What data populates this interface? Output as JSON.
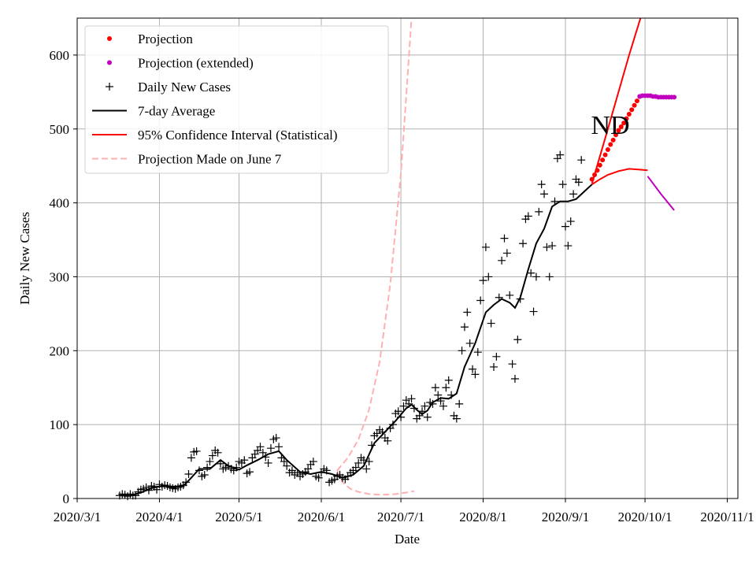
{
  "chart_data": {
    "type": "line",
    "state_label": "ND",
    "xlabel": "Date",
    "ylabel": "Daily New Cases",
    "xlim_days": [
      0,
      249
    ],
    "ylim": [
      0,
      650
    ],
    "x_ticks": [
      {
        "day": 0,
        "label": "2020/3/1"
      },
      {
        "day": 31,
        "label": "2020/4/1"
      },
      {
        "day": 61,
        "label": "2020/5/1"
      },
      {
        "day": 92,
        "label": "2020/6/1"
      },
      {
        "day": 122,
        "label": "2020/7/1"
      },
      {
        "day": 153,
        "label": "2020/8/1"
      },
      {
        "day": 184,
        "label": "2020/9/1"
      },
      {
        "day": 214,
        "label": "2020/10/1"
      },
      {
        "day": 245,
        "label": "2020/11/1"
      }
    ],
    "y_ticks": [
      0,
      100,
      200,
      300,
      400,
      500,
      600
    ],
    "grid": true,
    "legend": [
      {
        "label": "Projection",
        "style": "dot",
        "color": "#ff0000"
      },
      {
        "label": "Projection (extended)",
        "style": "dot",
        "color": "#bf00bf"
      },
      {
        "label": "Daily New Cases",
        "style": "plus",
        "color": "#000000"
      },
      {
        "label": "7-day Average",
        "style": "line",
        "color": "#000000"
      },
      {
        "label": "95% Confidence Interval (Statistical)",
        "style": "line",
        "color": "#ff0000"
      },
      {
        "label": "Projection Made on June 7",
        "style": "dash",
        "color": "#ffb0b0"
      }
    ],
    "daily_cases": [
      [
        16,
        4
      ],
      [
        17,
        6
      ],
      [
        18,
        5
      ],
      [
        19,
        3
      ],
      [
        20,
        6
      ],
      [
        21,
        4
      ],
      [
        22,
        4
      ],
      [
        23,
        9
      ],
      [
        24,
        12
      ],
      [
        25,
        13
      ],
      [
        26,
        15
      ],
      [
        27,
        11
      ],
      [
        28,
        17
      ],
      [
        29,
        16
      ],
      [
        30,
        12
      ],
      [
        31,
        19
      ],
      [
        32,
        16
      ],
      [
        33,
        18
      ],
      [
        34,
        17
      ],
      [
        35,
        15
      ],
      [
        36,
        14
      ],
      [
        37,
        13
      ],
      [
        38,
        15
      ],
      [
        39,
        16
      ],
      [
        40,
        18
      ],
      [
        41,
        22
      ],
      [
        42,
        33
      ],
      [
        43,
        55
      ],
      [
        44,
        63
      ],
      [
        45,
        64
      ],
      [
        46,
        38
      ],
      [
        47,
        30
      ],
      [
        48,
        32
      ],
      [
        49,
        42
      ],
      [
        50,
        50
      ],
      [
        51,
        58
      ],
      [
        52,
        65
      ],
      [
        53,
        62
      ],
      [
        54,
        47
      ],
      [
        55,
        40
      ],
      [
        56,
        42
      ],
      [
        57,
        44
      ],
      [
        58,
        40
      ],
      [
        59,
        38
      ],
      [
        60,
        42
      ],
      [
        61,
        50
      ],
      [
        62,
        48
      ],
      [
        63,
        52
      ],
      [
        64,
        34
      ],
      [
        65,
        36
      ],
      [
        66,
        55
      ],
      [
        67,
        60
      ],
      [
        68,
        65
      ],
      [
        69,
        70
      ],
      [
        70,
        62
      ],
      [
        71,
        56
      ],
      [
        72,
        48
      ],
      [
        73,
        68
      ],
      [
        74,
        80
      ],
      [
        75,
        82
      ],
      [
        76,
        70
      ],
      [
        77,
        55
      ],
      [
        78,
        50
      ],
      [
        79,
        44
      ],
      [
        80,
        35
      ],
      [
        81,
        38
      ],
      [
        82,
        32
      ],
      [
        83,
        35
      ],
      [
        84,
        30
      ],
      [
        85,
        33
      ],
      [
        86,
        36
      ],
      [
        87,
        40
      ],
      [
        88,
        46
      ],
      [
        89,
        50
      ],
      [
        90,
        30
      ],
      [
        91,
        28
      ],
      [
        92,
        35
      ],
      [
        93,
        40
      ],
      [
        94,
        38
      ],
      [
        95,
        22
      ],
      [
        96,
        24
      ],
      [
        97,
        26
      ],
      [
        98,
        30
      ],
      [
        99,
        32
      ],
      [
        100,
        28
      ],
      [
        101,
        26
      ],
      [
        102,
        30
      ],
      [
        103,
        35
      ],
      [
        104,
        38
      ],
      [
        105,
        42
      ],
      [
        106,
        48
      ],
      [
        107,
        55
      ],
      [
        108,
        52
      ],
      [
        109,
        40
      ],
      [
        110,
        50
      ],
      [
        111,
        72
      ],
      [
        112,
        85
      ],
      [
        113,
        88
      ],
      [
        114,
        93
      ],
      [
        115,
        90
      ],
      [
        116,
        82
      ],
      [
        117,
        78
      ],
      [
        118,
        95
      ],
      [
        119,
        100
      ],
      [
        120,
        115
      ],
      [
        121,
        118
      ],
      [
        122,
        110
      ],
      [
        123,
        125
      ],
      [
        124,
        133
      ],
      [
        125,
        128
      ],
      [
        126,
        135
      ],
      [
        127,
        122
      ],
      [
        128,
        108
      ],
      [
        129,
        112
      ],
      [
        130,
        118
      ],
      [
        131,
        125
      ],
      [
        132,
        110
      ],
      [
        133,
        130
      ],
      [
        134,
        128
      ],
      [
        135,
        150
      ],
      [
        136,
        140
      ],
      [
        137,
        132
      ],
      [
        138,
        125
      ],
      [
        139,
        150
      ],
      [
        140,
        160
      ],
      [
        141,
        140
      ],
      [
        142,
        112
      ],
      [
        143,
        108
      ],
      [
        144,
        128
      ],
      [
        145,
        200
      ],
      [
        146,
        232
      ],
      [
        147,
        252
      ],
      [
        148,
        210
      ],
      [
        149,
        175
      ],
      [
        150,
        168
      ],
      [
        151,
        198
      ],
      [
        152,
        268
      ],
      [
        153,
        295
      ],
      [
        154,
        340
      ],
      [
        155,
        300
      ],
      [
        156,
        237
      ],
      [
        157,
        178
      ],
      [
        158,
        192
      ],
      [
        159,
        272
      ],
      [
        160,
        322
      ],
      [
        161,
        352
      ],
      [
        162,
        332
      ],
      [
        163,
        275
      ],
      [
        164,
        182
      ],
      [
        165,
        162
      ],
      [
        166,
        215
      ],
      [
        167,
        270
      ],
      [
        168,
        345
      ],
      [
        169,
        378
      ],
      [
        170,
        382
      ],
      [
        171,
        305
      ],
      [
        172,
        253
      ],
      [
        173,
        300
      ],
      [
        174,
        388
      ],
      [
        175,
        425
      ],
      [
        176,
        412
      ],
      [
        177,
        340
      ],
      [
        178,
        300
      ],
      [
        179,
        342
      ],
      [
        180,
        402
      ],
      [
        181,
        460
      ],
      [
        182,
        465
      ],
      [
        183,
        425
      ],
      [
        184,
        368
      ],
      [
        185,
        342
      ],
      [
        186,
        375
      ],
      [
        187,
        412
      ],
      [
        188,
        432
      ],
      [
        189,
        428
      ],
      [
        190,
        458
      ]
    ],
    "seven_day_avg": [
      [
        16,
        4
      ],
      [
        20,
        4
      ],
      [
        24,
        8
      ],
      [
        28,
        14
      ],
      [
        32,
        17
      ],
      [
        36,
        16
      ],
      [
        40,
        17
      ],
      [
        43,
        28
      ],
      [
        46,
        40
      ],
      [
        50,
        40
      ],
      [
        54,
        52
      ],
      [
        57,
        44
      ],
      [
        61,
        39
      ],
      [
        64,
        45
      ],
      [
        68,
        52
      ],
      [
        72,
        60
      ],
      [
        76,
        64
      ],
      [
        79,
        52
      ],
      [
        84,
        36
      ],
      [
        88,
        33
      ],
      [
        92,
        36
      ],
      [
        96,
        33
      ],
      [
        100,
        28
      ],
      [
        104,
        32
      ],
      [
        108,
        44
      ],
      [
        112,
        75
      ],
      [
        116,
        90
      ],
      [
        120,
        105
      ],
      [
        124,
        122
      ],
      [
        126,
        127
      ],
      [
        128,
        120
      ],
      [
        130,
        114
      ],
      [
        132,
        119
      ],
      [
        134,
        130
      ],
      [
        137,
        136
      ],
      [
        140,
        135
      ],
      [
        143,
        142
      ],
      [
        146,
        178
      ],
      [
        150,
        210
      ],
      [
        154,
        252
      ],
      [
        157,
        262
      ],
      [
        160,
        270
      ],
      [
        163,
        265
      ],
      [
        165,
        258
      ],
      [
        167,
        272
      ],
      [
        170,
        310
      ],
      [
        173,
        345
      ],
      [
        176,
        365
      ],
      [
        179,
        395
      ],
      [
        182,
        402
      ],
      [
        185,
        402
      ],
      [
        188,
        405
      ],
      [
        191,
        415
      ],
      [
        194,
        425
      ]
    ],
    "projection": [
      [
        194,
        432
      ],
      [
        195,
        438
      ],
      [
        196,
        444
      ],
      [
        197,
        451
      ],
      [
        198,
        458
      ],
      [
        199,
        465
      ],
      [
        200,
        472
      ],
      [
        201,
        479
      ],
      [
        202,
        485
      ],
      [
        203,
        492
      ],
      [
        204,
        498
      ],
      [
        205,
        503
      ],
      [
        206,
        508
      ],
      [
        207,
        514
      ],
      [
        208,
        520
      ],
      [
        209,
        526
      ],
      [
        210,
        532
      ],
      [
        211,
        538
      ],
      [
        212,
        544
      ]
    ],
    "projection_extended": [
      [
        212,
        544
      ],
      [
        213,
        545
      ],
      [
        214,
        545
      ],
      [
        215,
        545
      ],
      [
        216,
        545
      ],
      [
        217,
        544
      ],
      [
        218,
        544
      ],
      [
        219,
        543
      ],
      [
        220,
        543
      ],
      [
        221,
        543
      ],
      [
        222,
        543
      ],
      [
        223,
        543
      ],
      [
        224,
        543
      ],
      [
        225,
        543
      ]
    ],
    "ci_upper": [
      [
        194,
        426
      ],
      [
        200,
        500
      ],
      [
        208,
        600
      ],
      [
        214,
        670
      ]
    ],
    "ci_lower": [
      [
        194,
        425
      ],
      [
        197,
        432
      ],
      [
        200,
        438
      ],
      [
        204,
        443
      ],
      [
        208,
        446
      ],
      [
        212,
        445
      ],
      [
        215,
        444
      ]
    ],
    "ci_lower_extended": [
      [
        215,
        436
      ],
      [
        220,
        412
      ],
      [
        225,
        390
      ]
    ],
    "june7_projection_upper": [
      [
        98,
        38
      ],
      [
        102,
        55
      ],
      [
        106,
        80
      ],
      [
        110,
        120
      ],
      [
        114,
        185
      ],
      [
        118,
        290
      ],
      [
        122,
        440
      ],
      [
        126,
        650
      ],
      [
        128,
        700
      ]
    ],
    "june7_projection_lower": [
      [
        98,
        38
      ],
      [
        100,
        22
      ],
      [
        103,
        13
      ],
      [
        106,
        9
      ],
      [
        110,
        6
      ],
      [
        115,
        5
      ],
      [
        120,
        6
      ],
      [
        124,
        8
      ],
      [
        127,
        10
      ]
    ]
  }
}
